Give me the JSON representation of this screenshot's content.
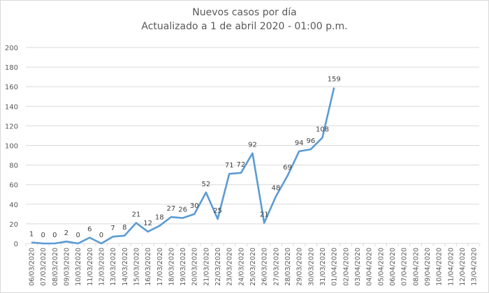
{
  "chart_data": {
    "type": "line",
    "title": "Nuevos casos por día",
    "subtitle": "Actualizado a 1 de abril 2020 - 01:00 p.m.",
    "xlabel": "",
    "ylabel": "",
    "ylim": [
      0,
      200
    ],
    "yticks": [
      0,
      20,
      40,
      60,
      80,
      100,
      120,
      140,
      160,
      180,
      200
    ],
    "grid": true,
    "legend": "none",
    "categories": [
      "06/03/2020",
      "07/03/2020",
      "08/03/2020",
      "09/03/2020",
      "10/03/2020",
      "11/03/2020",
      "12/03/2020",
      "13/03/2020",
      "14/03/2020",
      "15/03/2020",
      "16/03/2020",
      "17/03/2020",
      "18/03/2020",
      "19/03/2020",
      "20/03/2020",
      "21/03/2020",
      "22/03/2020",
      "23/03/2020",
      "24/03/2020",
      "25/03/2020",
      "26/03/2020",
      "27/03/2020",
      "28/03/2020",
      "29/03/2020",
      "30/03/2020",
      "31/03/2020",
      "01/04/2020",
      "02/04/2020",
      "03/04/2020",
      "04/04/2020",
      "05/04/2020",
      "06/04/2020",
      "07/04/2020",
      "08/04/2020",
      "09/04/2020",
      "10/04/2020",
      "11/04/2020",
      "12/04/2020",
      "13/04/2020"
    ],
    "series": [
      {
        "name": "Nuevos casos",
        "color": "#5b9bd5",
        "values": [
          1,
          0,
          0,
          2,
          0,
          6,
          0,
          7,
          8,
          21,
          12,
          18,
          27,
          26,
          30,
          52,
          25,
          71,
          72,
          92,
          21,
          48,
          69,
          94,
          96,
          108,
          159
        ]
      }
    ]
  },
  "colors": {
    "line": "#5b9bd5",
    "grid": "#d9d9d9",
    "text": "#595959"
  }
}
